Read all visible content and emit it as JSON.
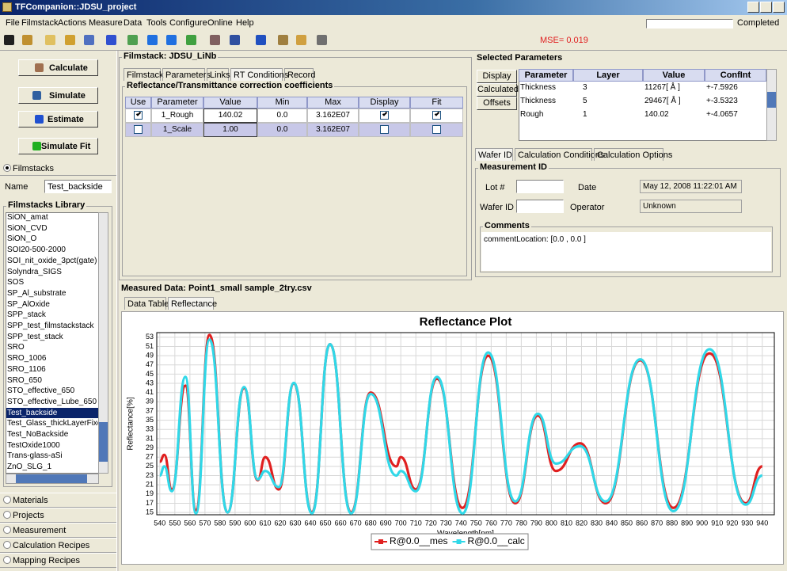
{
  "title_bar": {
    "title": "TFCompanion::JDSU_project"
  },
  "menu": [
    "File",
    "Filmstack",
    "Actions",
    "Measure",
    "Data",
    "Tools",
    "Configure",
    "Online",
    "Help"
  ],
  "status": "Completed",
  "mse": "MSE= 0.019",
  "left_panel": {
    "buttons": [
      "Calculate",
      "Simulate",
      "Estimate",
      "Simulate Fit"
    ],
    "filmstacks_tab": "Filmstacks",
    "name_label": "Name",
    "name_value": "Test_backside",
    "library_title": "Filmstacks Library",
    "library_items": [
      "SiON_amat",
      "SiON_CVD",
      "SiON_O",
      "SOI20-500-2000",
      "SOI_nit_oxide_3pct(gate)",
      "Solyndra_SIGS",
      "SOS",
      "SP_Al_substrate",
      "SP_AlOxide",
      "SPP_stack",
      "SPP_test_filmstackstack",
      "SPP_test_stack",
      "SRO",
      "SRO_1006",
      "SRO_1106",
      "SRO_650",
      "STO_effective_650",
      "STO_effective_Lube_650",
      "Test_backside",
      "Test_Glass_thickLayerFixed",
      "Test_NoBackside",
      "TestOxide1000",
      "Trans-glass-aSi",
      "ZnO_SLG_1"
    ],
    "selected_item": 18,
    "bottom_tabs": [
      "Materials",
      "Projects",
      "Measurement",
      "Calculation Recipes",
      "Mapping Recipes"
    ]
  },
  "filmstack": {
    "title": "Filmstack: JDSU_LiNb",
    "tabs": [
      "Filmstack",
      "Parameters",
      "Links",
      "RT Conditions",
      "Record"
    ],
    "active_tab": 3,
    "group_title": "Reflectance/Transmittance correction coefficients",
    "columns": [
      "Use",
      "Parameter",
      "Value",
      "Min",
      "Max",
      "Display",
      "Fit"
    ],
    "rows": [
      {
        "use": true,
        "parameter": "1_Rough",
        "value": "140.02",
        "min": "0.0",
        "max": "3.162E07",
        "display": true,
        "fit": true
      },
      {
        "use": false,
        "parameter": "1_Scale",
        "value": "1.00",
        "min": "0.0",
        "max": "3.162E07",
        "display": false,
        "fit": false
      }
    ]
  },
  "selected_parameters": {
    "title": "Selected Parameters",
    "buttons": [
      "Display",
      "Calculated",
      "Offsets"
    ],
    "columns": [
      "Parameter",
      "Layer",
      "Value",
      "ConfInt"
    ],
    "rows": [
      [
        "Thickness",
        "3",
        "11267[ Å ]",
        "+-7.5926"
      ],
      [
        "Thickness",
        "5",
        "29467[ Å ]",
        "+-3.5323"
      ],
      [
        "Rough",
        "1",
        "140.02",
        "+-4.0657"
      ]
    ]
  },
  "wafer": {
    "tabs": [
      "Wafer ID",
      "Calculation Conditions",
      "Calculation Options"
    ],
    "group_title": "Measurement ID",
    "lot_label": "Lot #",
    "date_label": "Date",
    "date_value": "May 12, 2008 11:22:01 AM",
    "wafer_label": "Wafer ID",
    "operator_label": "Operator",
    "operator_value": "Unknown",
    "comments_title": "Comments",
    "comments_text": "commentLocation: [0.0 , 0.0 ]"
  },
  "measured": {
    "title": "Measured Data: Point1_small sample_2try.csv",
    "tabs": [
      "Data Table",
      "Reflectance"
    ],
    "active_tab": 1
  },
  "chart_data": {
    "type": "line",
    "title": "Reflectance Plot",
    "x_label": "Wavelength[nm]",
    "y_label": "Reflectance[%]",
    "x": [
      540,
      543,
      548,
      557,
      564,
      573,
      585,
      596,
      605,
      610,
      619,
      629,
      641,
      653,
      667,
      680,
      697,
      700,
      710,
      724,
      741,
      758,
      776,
      791,
      803,
      819,
      836,
      859,
      881,
      905,
      929,
      940
    ],
    "series": [
      {
        "name": "R@0.0__mes",
        "color": "#e02020",
        "values": [
          26,
          27.5,
          20,
          42.5,
          15.5,
          53.5,
          15,
          42,
          22,
          27,
          20,
          43,
          15,
          51.5,
          15,
          41,
          25,
          27,
          20,
          44,
          16,
          49,
          17,
          36,
          24,
          30,
          17,
          48,
          16,
          49.5,
          17,
          25
        ]
      },
      {
        "name": "R@0.0__calc",
        "color": "#30d8e8",
        "values": [
          23,
          25,
          19.6,
          44.4,
          14.8,
          52.5,
          15,
          42.2,
          22.2,
          24,
          20.5,
          43.1,
          14.8,
          51.5,
          14.8,
          40.7,
          23,
          24,
          19.6,
          44.4,
          14.8,
          49.7,
          17.4,
          36.4,
          25.6,
          29.4,
          17.4,
          48.2,
          15.3,
          50.4,
          16.7,
          23
        ]
      }
    ],
    "xlim": [
      538,
      948
    ],
    "ylim": [
      14.5,
      54
    ],
    "xticks": [
      540,
      550,
      560,
      570,
      580,
      590,
      600,
      610,
      620,
      630,
      640,
      650,
      660,
      670,
      680,
      690,
      700,
      710,
      720,
      730,
      740,
      750,
      760,
      770,
      780,
      790,
      800,
      810,
      820,
      830,
      840,
      850,
      860,
      870,
      880,
      890,
      900,
      910,
      920,
      930,
      940
    ],
    "yticks": [
      15,
      17,
      19,
      21,
      23,
      25,
      27,
      29,
      31,
      33,
      35,
      37,
      39,
      41,
      43,
      45,
      47,
      49,
      51,
      53
    ],
    "grid": true,
    "legend": "bottom"
  }
}
